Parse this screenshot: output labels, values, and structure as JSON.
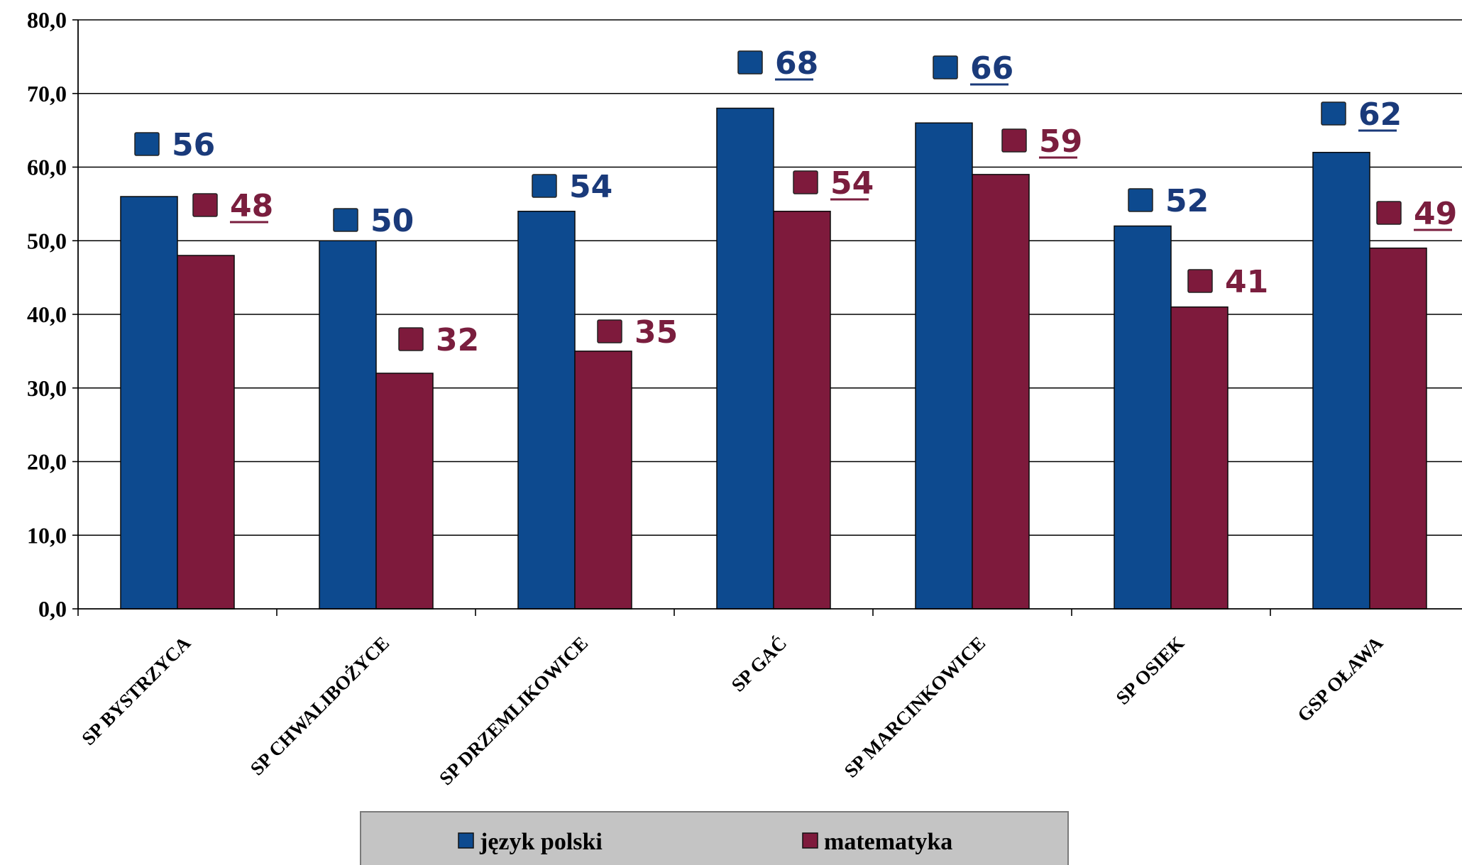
{
  "chart_data": {
    "type": "bar",
    "categories": [
      "SP BYSTRZYCA",
      "SP CHWALIBOŻYCE",
      "SP DRZEMLIKOWICE",
      "SP GAĆ",
      "SP MARCINKOWICE",
      "SP OSIEK",
      "GSP OŁAWA"
    ],
    "series": [
      {
        "name": "język polski",
        "values": [
          56,
          50,
          54,
          68,
          66,
          52,
          62
        ],
        "color": "#0d4a8f",
        "label_color": "#1a3a7a"
      },
      {
        "name": "matematyka",
        "values": [
          48,
          32,
          35,
          54,
          59,
          41,
          49
        ],
        "color": "#7e1a3c",
        "label_color": "#7a1e3e"
      }
    ],
    "data_labels": {
      "język polski": [
        "56",
        "50",
        "54",
        "68",
        "66",
        "52",
        "62"
      ],
      "matematyka": [
        "48",
        "32",
        "35",
        "54",
        "59",
        "41",
        "49"
      ]
    },
    "underlined_labels": [
      "48",
      "68",
      "66",
      "59",
      "54",
      "62",
      "49"
    ],
    "y_ticks": [
      "0,0",
      "10,0",
      "20,0",
      "30,0",
      "40,0",
      "50,0",
      "60,0",
      "70,0",
      "80,0"
    ],
    "ylim": [
      0,
      80
    ],
    "grid": true,
    "legend_position": "bottom",
    "title": "",
    "xlabel": "",
    "ylabel": ""
  }
}
